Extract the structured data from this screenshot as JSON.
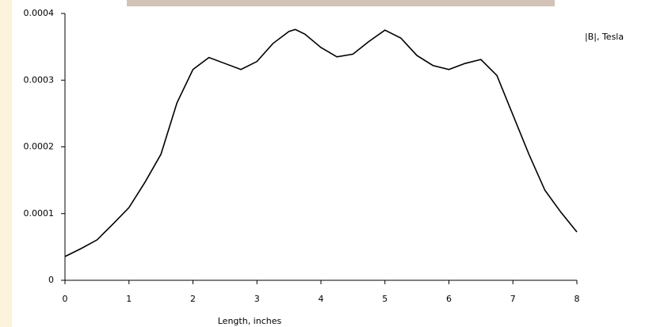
{
  "chart_data": {
    "type": "line",
    "x_label": "Length, inches",
    "x": [
      0,
      0.25,
      0.5,
      0.75,
      1,
      1.25,
      1.5,
      1.75,
      2,
      2.25,
      2.5,
      2.75,
      3,
      3.25,
      3.5,
      3.6,
      3.75,
      4,
      4.25,
      4.5,
      4.75,
      5,
      5.25,
      5.5,
      5.75,
      6,
      6.25,
      6.5,
      6.75,
      7,
      7.25,
      7.5,
      7.75,
      8
    ],
    "series": [
      {
        "name": "|B|, Tesla",
        "color": "#000000",
        "values": [
          3.56e-05,
          4.75e-05,
          6.05e-05,
          8.43e-05,
          0.000109,
          0.000147,
          0.000189,
          0.000266,
          0.000316,
          0.000334,
          0.000325,
          0.000316,
          0.000328,
          0.000355,
          0.000373,
          0.000376,
          0.000369,
          0.000349,
          0.000335,
          0.000339,
          0.000358,
          0.000375,
          0.000363,
          0.000337,
          0.000322,
          0.000316,
          0.000325,
          0.000331,
          0.000307,
          0.000248,
          0.000189,
          0.000135,
          0.000102,
          7.24e-05
        ]
      }
    ],
    "xlim": [
      0,
      8
    ],
    "xticks": [
      0,
      1,
      2,
      3,
      4,
      5,
      6,
      7,
      8
    ],
    "ylim": [
      0,
      0.0004
    ],
    "yticks": [
      0,
      0.0001,
      0.0002,
      0.0003,
      0.0004
    ]
  }
}
